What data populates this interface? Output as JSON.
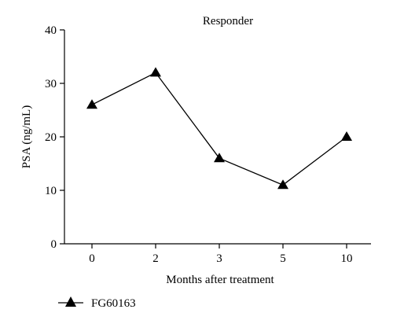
{
  "chart_data": {
    "type": "line",
    "title": "Responder",
    "xlabel": "Months after treatment",
    "ylabel": "PSA (ng/mL)",
    "categories": [
      "0",
      "2",
      "3",
      "5",
      "10"
    ],
    "ylim": [
      0,
      40
    ],
    "yticks": [
      "0",
      "10",
      "20",
      "30",
      "40"
    ],
    "grid": false,
    "legend_position": "bottom-left",
    "series": [
      {
        "name": "FG60163",
        "values": [
          26,
          32,
          16,
          11,
          20
        ],
        "marker": "triangle",
        "color": "#000000"
      }
    ]
  }
}
